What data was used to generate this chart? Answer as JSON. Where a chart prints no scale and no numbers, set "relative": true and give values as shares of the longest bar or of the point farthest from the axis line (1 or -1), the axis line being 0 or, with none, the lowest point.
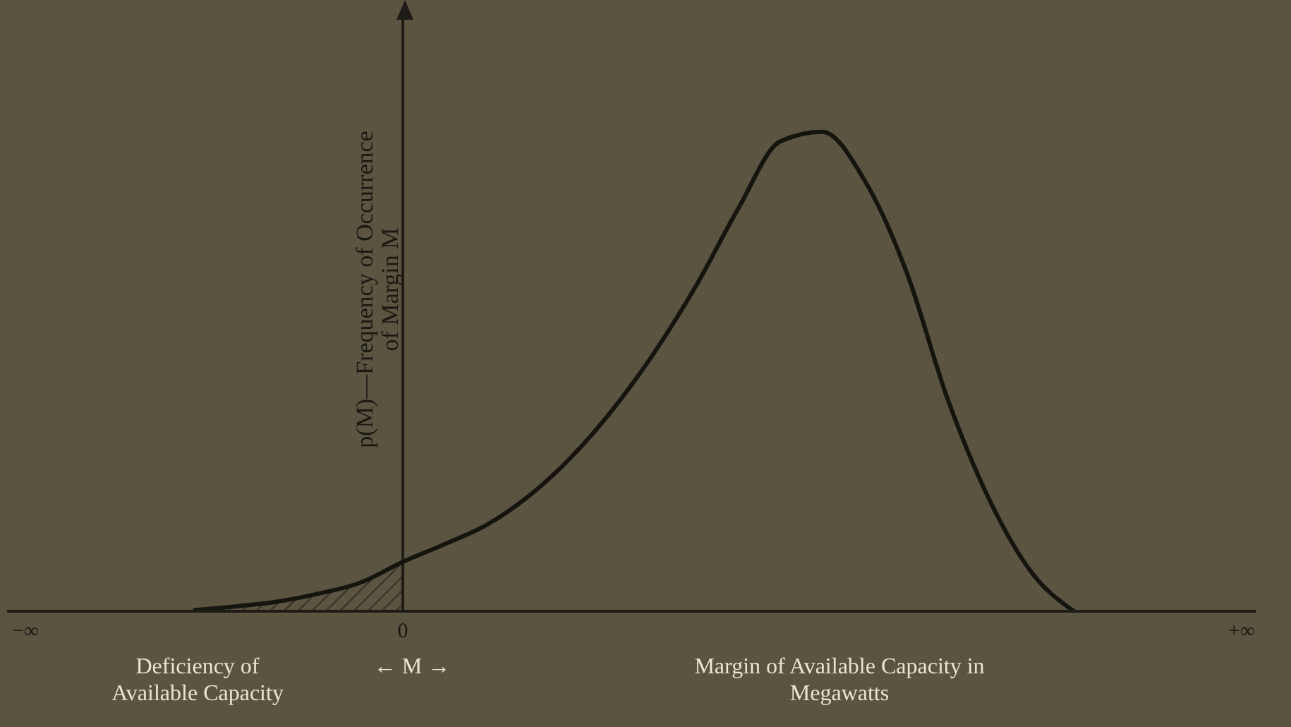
{
  "chart_data": {
    "type": "line",
    "relative": true,
    "xlabel": "Margin of Available Capacity in Megawatts",
    "ylabel": "p(M)—Frequency of Occurrence of Margin M",
    "categories": [
      "−∞",
      null,
      null,
      null,
      null,
      null,
      null,
      null,
      null,
      "0",
      null,
      null,
      null,
      null,
      null,
      null,
      null,
      null,
      null,
      null,
      null,
      null,
      null,
      null,
      null,
      null,
      null,
      null,
      null,
      "+∞"
    ],
    "grid": false,
    "legend": false,
    "marker": "none",
    "line_style": "solid",
    "ref_lines": [
      {
        "axis": "x",
        "value": "0",
        "color": "#1e1c16"
      }
    ],
    "annotations": [
      "Deficiency of Available Capacity",
      "← M →"
    ],
    "series": [
      {
        "type": "area",
        "color": "#2a2720",
        "values": [
          null,
          null,
          null,
          null,
          0.002,
          0.01,
          0.02,
          0.037,
          0.06,
          0.103,
          null,
          null,
          null,
          null,
          null,
          null,
          null,
          null,
          null,
          null,
          null,
          null,
          null,
          null,
          null,
          null,
          null,
          null,
          null,
          null
        ]
      },
      {
        "color": "#15140f",
        "values": [
          null,
          null,
          null,
          null,
          0.002,
          0.01,
          0.02,
          0.037,
          0.06,
          0.103,
          0.14,
          0.18,
          0.24,
          0.32,
          0.42,
          0.54,
          0.68,
          0.84,
          0.98,
          1,
          0.9,
          0.71,
          0.44,
          0.23,
          0.08,
          0,
          null,
          null,
          null,
          null
        ]
      }
    ]
  }
}
